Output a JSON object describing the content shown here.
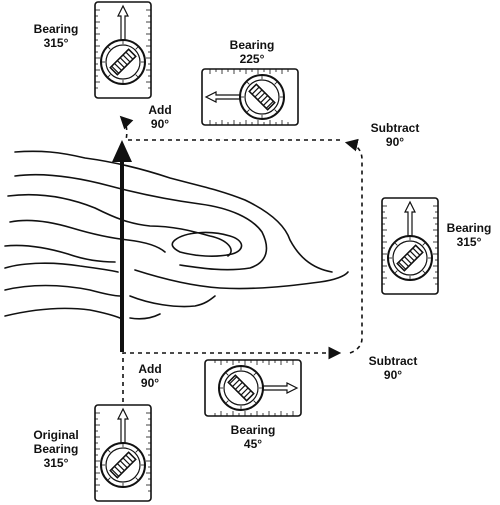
{
  "labels": {
    "top_left": {
      "line1": "Bearing",
      "line2": "315°"
    },
    "top_mid": {
      "line1": "Bearing",
      "line2": "225°"
    },
    "add_top": {
      "line1": "Add",
      "line2": "90°"
    },
    "subtract_top": {
      "line1": "Subtract",
      "line2": "90°"
    },
    "right": {
      "line1": "Bearing",
      "line2": "315°"
    },
    "add_bottom": {
      "line1": "Add",
      "line2": "90°"
    },
    "subtract_bottom": {
      "line1": "Subtract",
      "line2": "90°"
    },
    "bottom_mid": {
      "line1": "Bearing",
      "line2": "45°"
    },
    "original": {
      "line1": "Original",
      "line2": "Bearing",
      "line3": "315°"
    }
  },
  "colors": {
    "ink": "#111111",
    "background": "#ffffff"
  },
  "icons": [
    "compass-icon",
    "direction-arrow",
    "contour-lines"
  ]
}
